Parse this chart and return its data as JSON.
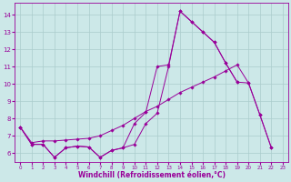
{
  "x": [
    0,
    1,
    2,
    3,
    4,
    5,
    6,
    7,
    8,
    9,
    10,
    11,
    12,
    13,
    14,
    15,
    16,
    17,
    18,
    19,
    20,
    21,
    22,
    23
  ],
  "line1": [
    7.5,
    6.5,
    6.5,
    5.75,
    6.3,
    6.4,
    6.35,
    5.75,
    6.15,
    6.3,
    6.5,
    7.7,
    8.3,
    11.0,
    14.2,
    13.6,
    13.0,
    12.4,
    11.2,
    10.1,
    null,
    null,
    null,
    null
  ],
  "line2": [
    7.5,
    6.5,
    6.5,
    5.75,
    6.3,
    6.4,
    6.35,
    5.75,
    6.15,
    6.3,
    7.7,
    8.35,
    11.0,
    11.1,
    14.2,
    13.6,
    13.0,
    12.4,
    11.2,
    10.1,
    10.05,
    8.2,
    6.3,
    null
  ],
  "line3": [
    7.5,
    6.6,
    6.7,
    6.7,
    6.75,
    6.8,
    6.85,
    7.0,
    7.3,
    7.6,
    8.0,
    8.4,
    8.7,
    9.1,
    9.5,
    9.8,
    10.1,
    10.4,
    10.75,
    11.1,
    10.05,
    8.2,
    6.3,
    null
  ],
  "line_color": "#990099",
  "bg_color": "#cce8e8",
  "grid_color": "#aacccc",
  "xlabel": "Windchill (Refroidissement éolien,°C)",
  "ylabel_ticks": [
    6,
    7,
    8,
    9,
    10,
    11,
    12,
    13,
    14
  ],
  "ylim": [
    5.5,
    14.7
  ],
  "xlim": [
    -0.5,
    23.5
  ]
}
